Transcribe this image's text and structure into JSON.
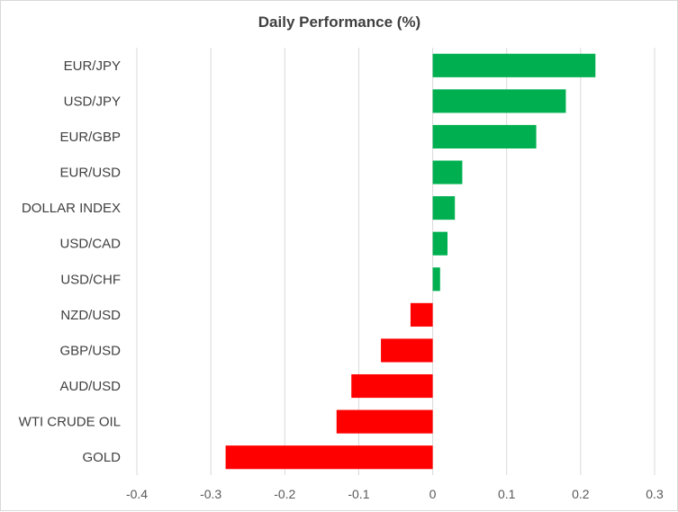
{
  "chart_data": {
    "type": "bar",
    "orientation": "horizontal",
    "title": "Daily Performance (%)",
    "xlabel": "",
    "ylabel": "",
    "categories": [
      "EUR/JPY",
      "USD/JPY",
      "EUR/GBP",
      "EUR/USD",
      "DOLLAR INDEX",
      "USD/CAD",
      "USD/CHF",
      "NZD/USD",
      "GBP/USD",
      "AUD/USD",
      "WTI CRUDE OIL",
      "GOLD"
    ],
    "values": [
      0.22,
      0.18,
      0.14,
      0.04,
      0.03,
      0.02,
      0.01,
      -0.03,
      -0.07,
      -0.11,
      -0.13,
      -0.28
    ],
    "xlim": [
      -0.4,
      0.3
    ],
    "xticks": [
      "-0.4",
      "-0.3",
      "-0.2",
      "-0.1",
      "0",
      "0.1",
      "0.2",
      "0.3"
    ],
    "grid": "vertical",
    "legend": "none",
    "colors": {
      "positive": "#00b050",
      "negative": "#ff0000",
      "gridline": "#d9d9d9",
      "text": "#404040"
    }
  }
}
